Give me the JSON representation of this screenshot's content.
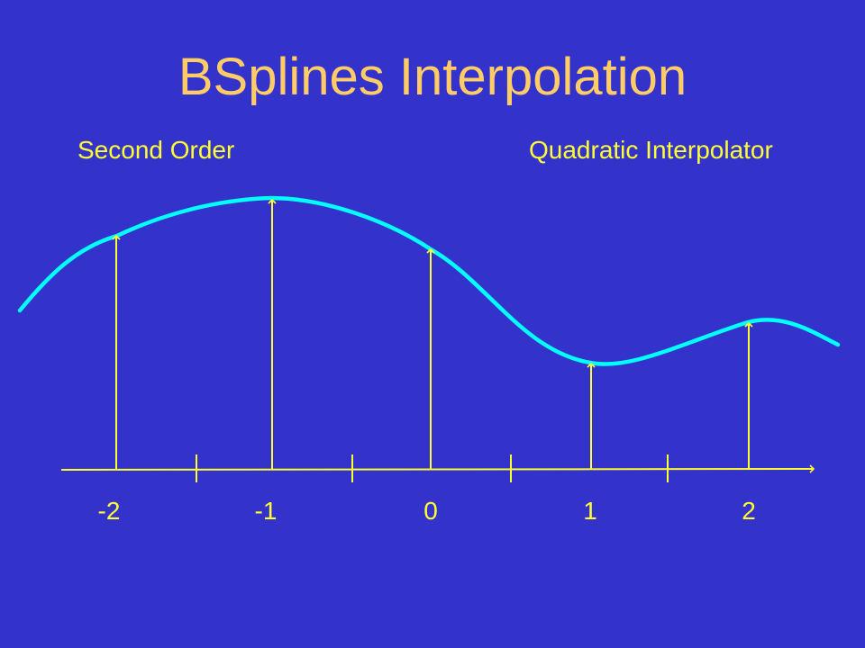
{
  "title": "BSplines Interpolation",
  "labels": {
    "left": "Second Order",
    "right": "Quadratic Interpolator"
  },
  "axis": {
    "tick_labels": [
      "-2",
      "-1",
      "0",
      "1",
      "2"
    ]
  },
  "colors": {
    "background": "#3333cc",
    "title": "#ffcc66",
    "text": "#ffff33",
    "curve": "#00ffff",
    "arrows": "#ffff33"
  }
}
